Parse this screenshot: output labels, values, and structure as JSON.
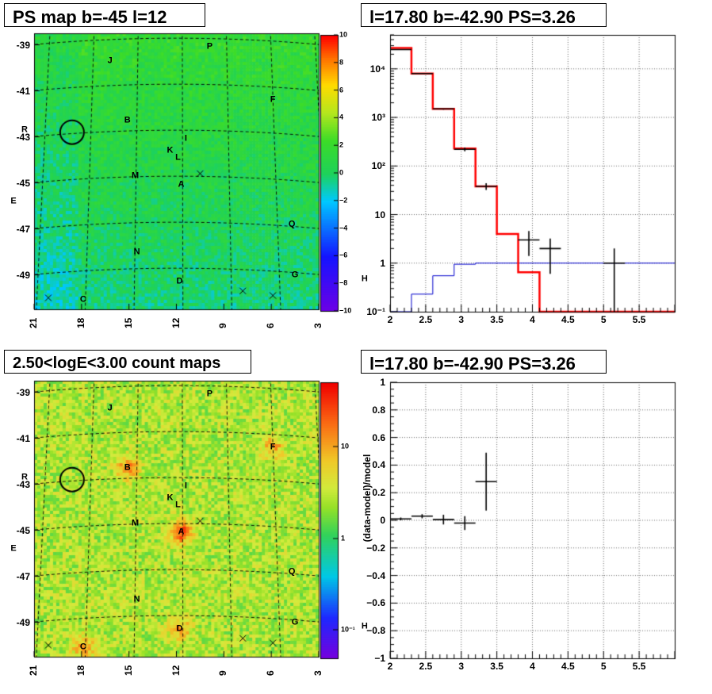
{
  "panels": {
    "ps_map": {
      "title": "PS map b=-45 l=12",
      "y_ticks": [
        "-39",
        "-41",
        "-43",
        "-45",
        "-47",
        "-49"
      ],
      "x_ticks": [
        "21",
        "18",
        "15",
        "12",
        "9",
        "6",
        "3"
      ],
      "colorbar_ticks": [
        "10",
        "8",
        "6",
        "4",
        "2",
        "0",
        "−2",
        "−4",
        "−6",
        "−8",
        "−10"
      ],
      "sources": [
        {
          "label": "P",
          "l": 9.9,
          "b": -39.1
        },
        {
          "label": "J",
          "l": 16.2,
          "b": -39.7
        },
        {
          "label": "F",
          "l": 5.9,
          "b": -41.4
        },
        {
          "label": "B",
          "l": 15.1,
          "b": -42.3
        },
        {
          "label": "R",
          "l": 21.6,
          "b": -42.7
        },
        {
          "label": "I",
          "l": 11.4,
          "b": -43.1
        },
        {
          "label": "K",
          "l": 12.4,
          "b": -43.6
        },
        {
          "label": "L",
          "l": 11.9,
          "b": -43.9
        },
        {
          "label": "M",
          "l": 14.6,
          "b": -44.7
        },
        {
          "label": "A",
          "l": 11.7,
          "b": -45.1
        },
        {
          "label": "E",
          "l": 22.3,
          "b": -45.8
        },
        {
          "label": "Q",
          "l": 4.7,
          "b": -46.8
        },
        {
          "label": "N",
          "l": 14.5,
          "b": -48.0
        },
        {
          "label": "G",
          "l": 4.5,
          "b": -49.0
        },
        {
          "label": "D",
          "l": 11.8,
          "b": -49.3
        },
        {
          "label": "H",
          "l": 0.1,
          "b": -49.2
        },
        {
          "label": "O",
          "l": 23.9,
          "b": -50.1
        },
        {
          "label": "C",
          "l": 17.9,
          "b": -50.1
        }
      ]
    },
    "count_map": {
      "title": "2.50<logE<3.00 count maps",
      "colorbar_ticks": [
        "10",
        "1",
        "10⁻¹"
      ]
    },
    "spectrum": {
      "title": "l=17.80 b=-42.90 PS=3.26",
      "x_ticks": [
        "2",
        "2.5",
        "3",
        "3.5",
        "4",
        "4.5",
        "5",
        "5.5"
      ],
      "y_ticks": [
        "10⁴",
        "10³",
        "10²",
        "10",
        "1",
        "10⁻¹"
      ]
    },
    "residual": {
      "title": "l=17.80 b=-42.90 PS=3.26",
      "y_label": "(data-model)/model",
      "x_ticks": [
        "2",
        "2.5",
        "3",
        "3.5",
        "4",
        "4.5",
        "5",
        "5.5"
      ],
      "y_ticks": [
        "1",
        "0.8",
        "0.6",
        "0.4",
        "0.2",
        "0",
        "−0.2",
        "−0.4",
        "−0.6",
        "−0.8",
        "−1"
      ]
    }
  },
  "colors": {
    "model_total": "#ff0000",
    "model_bkg": "#0000cc",
    "data": "#000000",
    "map_base": "#22cc44",
    "count_base": "#d7e83a",
    "circle": "#000000"
  },
  "chart_data": [
    {
      "type": "heatmap",
      "title": "PS map b=-45 l=12",
      "xlabel": "",
      "ylabel": "",
      "xlim": [
        21,
        3
      ],
      "ylim": [
        -50.5,
        -38.5
      ],
      "zlim": [
        -10,
        10
      ],
      "description_values": {
        "typical_z": [
          -1,
          2
        ]
      },
      "markers": {
        "circle": {
          "l": 18.6,
          "b": -42.8
        },
        "crosses": [
          {
            "l": 10.5,
            "b": -44.6
          },
          {
            "l": 7.8,
            "b": -49.7
          },
          {
            "l": 5.9,
            "b": -49.9
          },
          {
            "l": 2.3,
            "b": -50.0
          },
          {
            "l": 20.1,
            "b": -50.0
          }
        ]
      }
    },
    {
      "type": "heatmap",
      "title": "2.50<logE<3.00 count maps",
      "xlim": [
        21,
        3
      ],
      "ylim": [
        -50.5,
        -38.5
      ],
      "zscale": "log",
      "zlim": [
        0.05,
        40
      ],
      "hotspots": [
        {
          "label": "A",
          "l": 11.7,
          "b": -45.1,
          "z": 30
        },
        {
          "label": "B",
          "l": 15.1,
          "b": -42.3,
          "z": 12
        },
        {
          "label": "F",
          "l": 5.9,
          "b": -41.4,
          "z": 8
        },
        {
          "label": "D",
          "l": 11.8,
          "b": -49.3,
          "z": 8
        },
        {
          "label": "C",
          "l": 17.9,
          "b": -50.1,
          "z": 10
        }
      ]
    },
    {
      "type": "line",
      "title": "l=17.80 b=-42.90 PS=3.26",
      "xlim": [
        2,
        6
      ],
      "ylim": [
        0.1,
        50000
      ],
      "yscale": "log",
      "grid": true,
      "series": [
        {
          "role": "total_model",
          "style": "step",
          "edges": [
            2.0,
            2.3,
            2.6,
            2.9,
            3.2,
            3.5,
            3.8,
            4.1,
            4.4,
            6.0
          ],
          "values": [
            27000,
            8000,
            1500,
            230,
            38,
            4,
            0.65,
            0.1,
            0.1
          ]
        },
        {
          "role": "background_model",
          "style": "step",
          "edges": [
            2.0,
            2.3,
            2.6,
            2.9,
            3.2,
            6.0
          ],
          "values": [
            0.1,
            0.23,
            0.55,
            0.95,
            1.0
          ]
        },
        {
          "role": "data",
          "style": "errorbar",
          "points": [
            {
              "x": 2.15,
              "y": 25000,
              "xerr": 0.15,
              "ylo": 24500,
              "yhi": 25500
            },
            {
              "x": 2.45,
              "y": 8000,
              "xerr": 0.15,
              "ylo": 7900,
              "yhi": 8100
            },
            {
              "x": 2.75,
              "y": 1500,
              "xerr": 0.15,
              "ylo": 1450,
              "yhi": 1550
            },
            {
              "x": 3.05,
              "y": 220,
              "xerr": 0.15,
              "ylo": 200,
              "yhi": 240
            },
            {
              "x": 3.35,
              "y": 38,
              "xerr": 0.15,
              "ylo": 32,
              "yhi": 44
            },
            {
              "x": 3.95,
              "y": 3,
              "xerr": 0.15,
              "ylo": 1.4,
              "yhi": 4.6
            },
            {
              "x": 4.25,
              "y": 2,
              "xerr": 0.15,
              "ylo": 0.6,
              "yhi": 3.2
            },
            {
              "x": 5.15,
              "y": 1,
              "xerr": 0.15,
              "ylo": 0.1,
              "yhi": 2
            }
          ]
        }
      ]
    },
    {
      "type": "scatter",
      "title": "l=17.80 b=-42.90 PS=3.26",
      "ylabel": "(data-model)/model",
      "xlim": [
        2,
        6
      ],
      "ylim": [
        -1,
        1
      ],
      "grid": true,
      "series": [
        {
          "role": "residual",
          "style": "errorbar",
          "points": [
            {
              "x": 2.15,
              "y": 0.01,
              "xerr": 0.15,
              "yerr": 0.01
            },
            {
              "x": 2.45,
              "y": 0.03,
              "xerr": 0.15,
              "yerr": 0.015
            },
            {
              "x": 2.75,
              "y": 0.005,
              "xerr": 0.15,
              "yerr": 0.035
            },
            {
              "x": 3.05,
              "y": -0.02,
              "xerr": 0.15,
              "yerr": 0.05
            },
            {
              "x": 3.35,
              "y": 0.28,
              "xerr": 0.15,
              "yerr": 0.21
            }
          ]
        }
      ]
    }
  ]
}
